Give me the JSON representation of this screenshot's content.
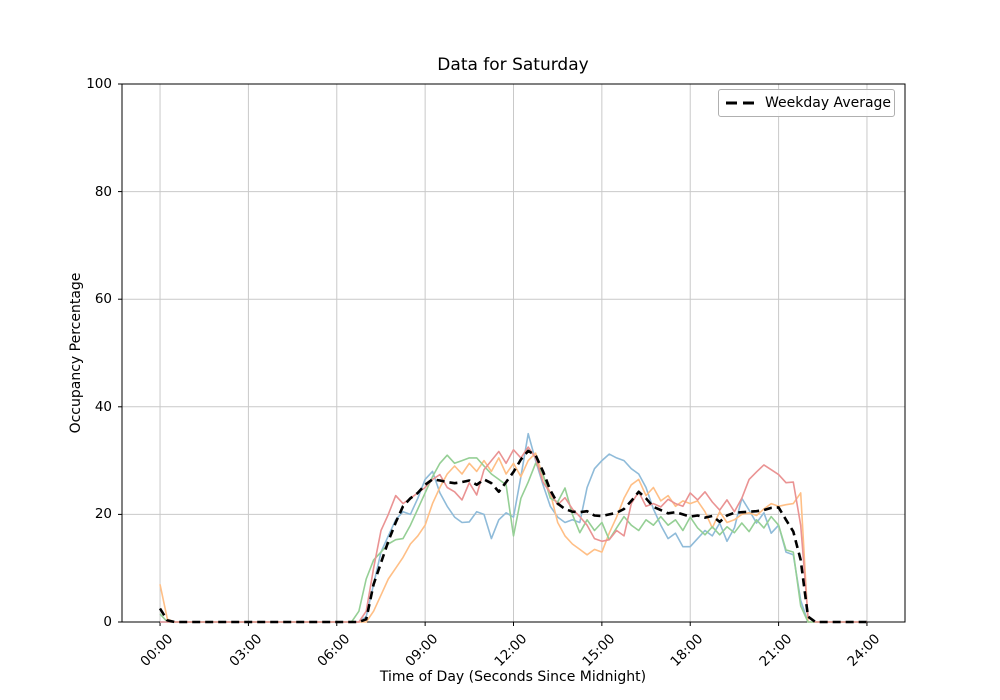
{
  "title": "Data for Saturday",
  "xlabel": "Time of Day (Seconds Since Midnight)",
  "ylabel": "Occupancy Percentage",
  "legend": {
    "label": "Weekday Average"
  },
  "chart_data": {
    "type": "line",
    "title": "Data for Saturday",
    "xlabel": "Time of Day (Seconds Since Midnight)",
    "ylabel": "Occupancy Percentage",
    "grid": true,
    "legend_position": "upper right",
    "xlim_hours": [
      -1.2917,
      25.2917
    ],
    "ylim": [
      0,
      100
    ],
    "x_ticks_hours": [
      0,
      3,
      6,
      9,
      12,
      15,
      18,
      21,
      24
    ],
    "x_tick_labels": [
      "00:00",
      "03:00",
      "06:00",
      "09:00",
      "12:00",
      "15:00",
      "18:00",
      "21:00",
      "24:00"
    ],
    "y_ticks": [
      0,
      20,
      40,
      60,
      80,
      100
    ],
    "x_start_hours": 0,
    "x_step_hours": 0.25,
    "grid_color": "#c9c9c9",
    "series": [
      {
        "name": "saturday-series-1",
        "color": "#8FBBD9",
        "width": 1.6,
        "dashed": false,
        "values": [
          0,
          0,
          0,
          0,
          0,
          0,
          0,
          0,
          0,
          0,
          0,
          0,
          0,
          0,
          0,
          0,
          0,
          0,
          0,
          0,
          0,
          0,
          0,
          0,
          0,
          0,
          0,
          0,
          1,
          7,
          13,
          16,
          19,
          20.5,
          20,
          23,
          26.5,
          28,
          24,
          21.5,
          19.5,
          18.5,
          18.6,
          20.5,
          20,
          15.5,
          19,
          20.3,
          19.5,
          27,
          35,
          30,
          25.5,
          21.5,
          19.5,
          18.5,
          19,
          18.5,
          25,
          28.5,
          30,
          31.2,
          30.5,
          30,
          28.5,
          27.5,
          25,
          21,
          18,
          15.5,
          16.5,
          14,
          14,
          15.5,
          17,
          16,
          18.4,
          15,
          17.5,
          23,
          20.8,
          18.4,
          20.3,
          16.5,
          18,
          13,
          12.5,
          4,
          0,
          0,
          0,
          0,
          0,
          0,
          0,
          0,
          0
        ]
      },
      {
        "name": "saturday-series-2",
        "color": "#FFBF86",
        "width": 1.6,
        "dashed": false,
        "values": [
          7,
          0.5,
          0,
          0,
          0,
          0,
          0,
          0,
          0,
          0,
          0,
          0,
          0,
          0,
          0,
          0,
          0,
          0,
          0,
          0,
          0,
          0,
          0,
          0,
          0,
          0,
          0,
          0,
          0,
          2,
          5,
          8,
          10,
          12,
          14.5,
          16,
          18,
          22,
          25,
          27.5,
          29,
          27.5,
          29.5,
          28,
          30,
          28,
          30.5,
          27.5,
          29.5,
          27,
          30,
          31.4,
          27,
          24,
          18.5,
          16,
          14.5,
          13.5,
          12.5,
          13.5,
          13,
          16.5,
          19.5,
          23,
          25.5,
          26.5,
          23.5,
          25,
          22.5,
          23.5,
          21.5,
          22.5,
          22,
          22.5,
          20.5,
          17.5,
          20.5,
          18.5,
          19,
          20,
          20.3,
          19.8,
          21,
          22,
          21.5,
          21.8,
          22,
          24,
          0,
          0,
          0,
          0,
          0,
          0,
          0,
          0,
          0
        ]
      },
      {
        "name": "saturday-series-3",
        "color": "#95CF95",
        "width": 1.6,
        "dashed": false,
        "values": [
          1.5,
          0,
          0,
          0,
          0,
          0,
          0,
          0,
          0,
          0,
          0,
          0,
          0,
          0,
          0,
          0,
          0,
          0,
          0,
          0,
          0,
          0,
          0,
          0,
          0,
          0,
          0,
          2,
          8,
          11.5,
          13,
          14.5,
          15.3,
          15.5,
          18,
          21,
          24,
          27,
          29.5,
          31,
          29.5,
          30,
          30.5,
          30.5,
          29,
          27.5,
          26.5,
          25.5,
          16,
          23,
          26,
          29.5,
          27.5,
          23,
          22.3,
          24.9,
          20,
          16.6,
          19,
          17,
          18.5,
          15.3,
          17.5,
          19.6,
          18,
          17,
          19,
          18,
          19.6,
          18,
          19,
          17,
          19.5,
          17.5,
          16.2,
          17.7,
          16.2,
          17.7,
          16.6,
          18.4,
          16.8,
          19,
          17.5,
          19.6,
          18,
          13.4,
          13,
          3,
          0,
          0,
          0,
          0,
          0,
          0,
          0,
          0,
          0
        ]
      },
      {
        "name": "saturday-series-4",
        "color": "#EA9393",
        "width": 1.6,
        "dashed": false,
        "values": [
          0,
          0,
          0,
          0,
          0,
          0,
          0,
          0,
          0,
          0,
          0,
          0,
          0,
          0,
          0,
          0,
          0,
          0,
          0,
          0,
          0,
          0,
          0,
          0,
          0,
          0,
          0,
          0,
          2,
          10,
          17,
          20,
          23.5,
          22,
          23,
          24,
          25,
          26.5,
          27.4,
          25,
          24.2,
          22.7,
          25.9,
          23.6,
          28.3,
          30,
          31.7,
          29.5,
          32,
          30.5,
          32.5,
          30.5,
          26,
          24,
          21.8,
          23.1,
          21,
          19.6,
          18,
          15.5,
          15,
          15.3,
          17,
          16,
          22,
          24.2,
          21.5,
          22,
          21.4,
          22.8,
          22,
          21.5,
          24,
          22.7,
          24.2,
          22.3,
          20.8,
          22.7,
          20.5,
          23,
          26.5,
          27.9,
          29.2,
          28.3,
          27.4,
          25.9,
          26,
          18,
          1,
          0,
          0,
          0,
          0,
          0,
          0,
          0,
          0
        ]
      },
      {
        "name": "Weekday Average",
        "color": "#000000",
        "width": 2.6,
        "dashed": true,
        "values": [
          2.5,
          0.3,
          0,
          0,
          0,
          0,
          0,
          0,
          0,
          0,
          0,
          0,
          0,
          0,
          0,
          0,
          0,
          0,
          0,
          0,
          0,
          0,
          0,
          0,
          0,
          0,
          0,
          0,
          0.5,
          7,
          11,
          15,
          18.5,
          21.5,
          23,
          24,
          25.5,
          26.5,
          26.3,
          26,
          25.8,
          26,
          26.3,
          25.5,
          26.5,
          25.8,
          24.2,
          26,
          27.9,
          30.2,
          31.8,
          31,
          28,
          24.5,
          22,
          21,
          20.5,
          20.4,
          20.6,
          19.8,
          19.7,
          20,
          20.3,
          21,
          22.5,
          24.2,
          23,
          21.4,
          20.8,
          20.2,
          20.4,
          20,
          19.6,
          19.8,
          19.4,
          19.7,
          18.6,
          19.8,
          20.3,
          20.4,
          20.5,
          20.6,
          20.8,
          21.2,
          21.3,
          19,
          16.8,
          11.5,
          1,
          0,
          0,
          0,
          0,
          0,
          0,
          0,
          0
        ]
      }
    ]
  }
}
